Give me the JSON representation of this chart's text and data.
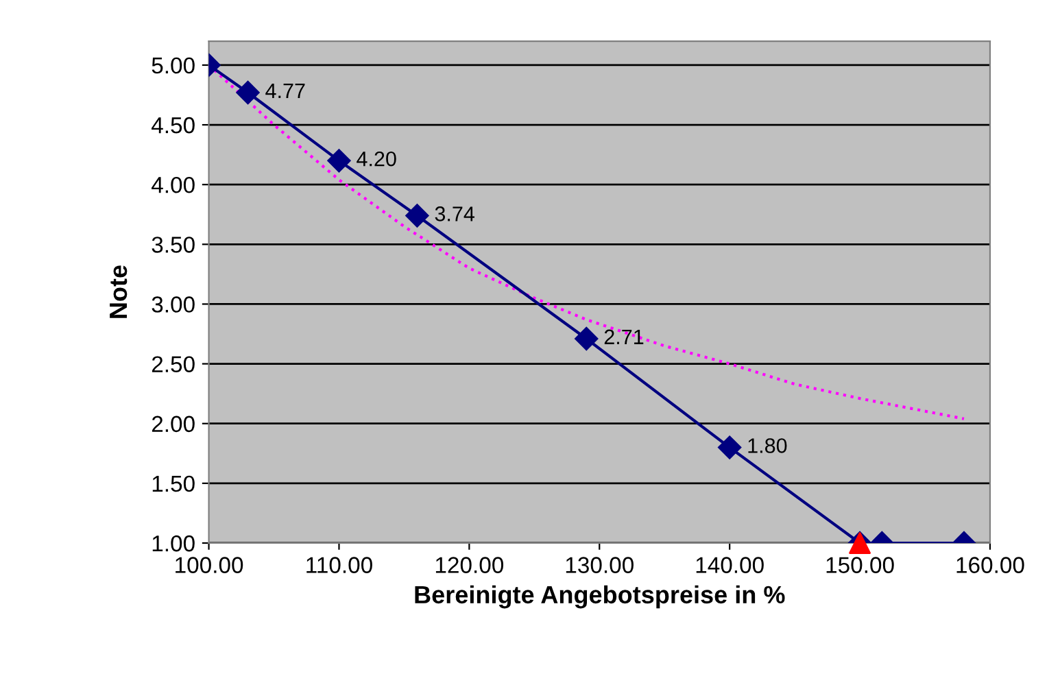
{
  "chart_data": {
    "type": "line",
    "xlabel": "Bereinigte Angebotspreise in %",
    "ylabel": "Note",
    "xlim": [
      100,
      160
    ],
    "xticks": [
      {
        "value": 100,
        "label": "100.00"
      },
      {
        "value": 110,
        "label": "110.00"
      },
      {
        "value": 120,
        "label": "120.00"
      },
      {
        "value": 130,
        "label": "130.00"
      },
      {
        "value": 140,
        "label": "140.00"
      },
      {
        "value": 150,
        "label": "150.00"
      },
      {
        "value": 160,
        "label": "160.00"
      }
    ],
    "ylim": [
      1,
      5.2
    ],
    "yticks": [
      {
        "value": 1,
        "label": "1.00"
      },
      {
        "value": 1.5,
        "label": "1.50"
      },
      {
        "value": 2,
        "label": "2.00"
      },
      {
        "value": 2.5,
        "label": "2.50"
      },
      {
        "value": 3,
        "label": "3.00"
      },
      {
        "value": 3.5,
        "label": "3.50"
      },
      {
        "value": 4,
        "label": "4.00"
      },
      {
        "value": 4.5,
        "label": "4.50"
      },
      {
        "value": 5,
        "label": "5.00"
      }
    ],
    "grid": "y",
    "series": [
      {
        "color": "#ff00ff",
        "line_style": "dotted",
        "marker": "none",
        "x": [
          100,
          105,
          110,
          115,
          120,
          125,
          129,
          135,
          140,
          145,
          150,
          158
        ],
        "values": [
          5.0,
          4.5,
          4.04,
          3.65,
          3.3,
          3.05,
          2.87,
          2.65,
          2.5,
          2.33,
          2.21,
          2.04
        ]
      },
      {
        "color": "#000080",
        "line_style": "solid",
        "marker": "diamond",
        "x": [
          100,
          103,
          110,
          116,
          129,
          140,
          150,
          151.7,
          158
        ],
        "values": [
          5.0,
          4.77,
          4.2,
          3.74,
          2.71,
          1.8,
          1.0,
          1.0,
          1.0
        ],
        "value_labels": [
          null,
          "4.77",
          "4.20",
          "3.74",
          "2.71",
          "1.80",
          null,
          null,
          null
        ]
      },
      {
        "type": "scatter",
        "color": "#ff0000",
        "marker": "triangle",
        "x": [
          150
        ],
        "values": [
          1.0
        ]
      }
    ]
  }
}
